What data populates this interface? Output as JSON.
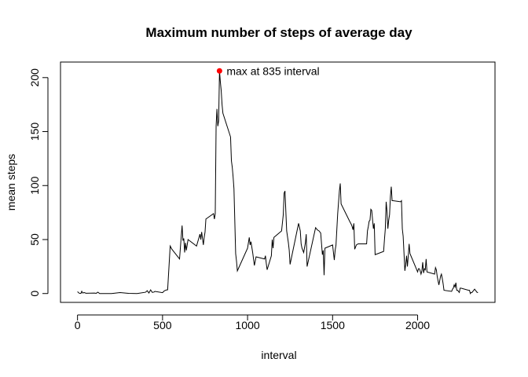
{
  "chart_data": {
    "type": "line",
    "title": "Maximum number of steps of average day",
    "xlabel": "interval",
    "ylabel": "mean steps",
    "xlim": [
      -100,
      2455
    ],
    "ylim": [
      -8.2,
      214.4
    ],
    "x_ticks": [
      0,
      500,
      1000,
      1500,
      2000
    ],
    "y_ticks": [
      0,
      50,
      100,
      150,
      200
    ],
    "x_tick_labels": [
      "0",
      "500",
      "1000",
      "1500",
      "2000"
    ],
    "y_tick_labels": [
      "0",
      "50",
      "100",
      "150",
      "200"
    ],
    "grid": false,
    "line_color": "#000000",
    "max_point": {
      "x": 835,
      "y": 206.2,
      "color": "#ff0000"
    },
    "annotation": "max at 835 interval",
    "series": [
      {
        "points": [
          [
            0,
            1.7
          ],
          [
            10,
            0.3
          ],
          [
            20,
            0.1
          ],
          [
            25,
            2.1
          ],
          [
            30,
            0.5
          ],
          [
            40,
            0.9
          ],
          [
            50,
            0.3
          ],
          [
            100,
            0.4
          ],
          [
            110,
            0.2
          ],
          [
            120,
            1.3
          ],
          [
            130,
            0.0
          ],
          [
            200,
            0.0
          ],
          [
            250,
            0.9
          ],
          [
            300,
            0.2
          ],
          [
            350,
            0.0
          ],
          [
            400,
            1.2
          ],
          [
            410,
            2.6
          ],
          [
            420,
            0.5
          ],
          [
            430,
            3.4
          ],
          [
            440,
            1.0
          ],
          [
            450,
            1.4
          ],
          [
            455,
            2.0
          ],
          [
            500,
            0.8
          ],
          [
            510,
            2.4
          ],
          [
            520,
            3.2
          ],
          [
            530,
            3.5
          ],
          [
            545,
            44
          ],
          [
            555,
            41
          ],
          [
            600,
            32
          ],
          [
            610,
            53
          ],
          [
            615,
            63
          ],
          [
            620,
            49
          ],
          [
            625,
            51
          ],
          [
            630,
            38
          ],
          [
            635,
            47
          ],
          [
            640,
            40
          ],
          [
            650,
            50
          ],
          [
            700,
            44
          ],
          [
            720,
            55
          ],
          [
            725,
            50
          ],
          [
            730,
            57
          ],
          [
            740,
            45
          ],
          [
            745,
            52
          ],
          [
            750,
            57
          ],
          [
            755,
            69
          ],
          [
            800,
            74
          ],
          [
            805,
            69
          ],
          [
            810,
            74
          ],
          [
            815,
            155
          ],
          [
            820,
            171
          ],
          [
            825,
            155
          ],
          [
            830,
            160
          ],
          [
            835,
            206.2
          ],
          [
            840,
            196
          ],
          [
            845,
            188
          ],
          [
            850,
            175
          ],
          [
            855,
            167
          ],
          [
            900,
            145
          ],
          [
            905,
            123
          ],
          [
            910,
            117
          ],
          [
            915,
            108
          ],
          [
            920,
            97
          ],
          [
            930,
            37
          ],
          [
            935,
            30
          ],
          [
            940,
            21
          ],
          [
            1000,
            42
          ],
          [
            1010,
            52
          ],
          [
            1015,
            45
          ],
          [
            1020,
            48
          ],
          [
            1030,
            38
          ],
          [
            1040,
            26
          ],
          [
            1050,
            34
          ],
          [
            1100,
            32
          ],
          [
            1105,
            35
          ],
          [
            1110,
            28
          ],
          [
            1115,
            22
          ],
          [
            1140,
            35
          ],
          [
            1145,
            50
          ],
          [
            1150,
            42
          ],
          [
            1155,
            52
          ],
          [
            1200,
            58
          ],
          [
            1210,
            73
          ],
          [
            1215,
            93
          ],
          [
            1220,
            95
          ],
          [
            1230,
            58
          ],
          [
            1240,
            47
          ],
          [
            1245,
            40
          ],
          [
            1250,
            27
          ],
          [
            1300,
            65
          ],
          [
            1310,
            58
          ],
          [
            1315,
            46
          ],
          [
            1320,
            42
          ],
          [
            1330,
            38
          ],
          [
            1340,
            47
          ],
          [
            1345,
            55
          ],
          [
            1350,
            25
          ],
          [
            1400,
            61
          ],
          [
            1410,
            59
          ],
          [
            1420,
            58
          ],
          [
            1430,
            56
          ],
          [
            1440,
            36
          ],
          [
            1445,
            40
          ],
          [
            1450,
            17
          ],
          [
            1455,
            42
          ],
          [
            1500,
            45
          ],
          [
            1505,
            38
          ],
          [
            1510,
            31
          ],
          [
            1515,
            40
          ],
          [
            1520,
            45
          ],
          [
            1530,
            74
          ],
          [
            1540,
            95
          ],
          [
            1545,
            102
          ],
          [
            1550,
            83
          ],
          [
            1600,
            67
          ],
          [
            1610,
            64
          ],
          [
            1615,
            62
          ],
          [
            1620,
            59
          ],
          [
            1625,
            65
          ],
          [
            1630,
            41
          ],
          [
            1640,
            45
          ],
          [
            1650,
            46
          ],
          [
            1700,
            46
          ],
          [
            1705,
            58
          ],
          [
            1710,
            62
          ],
          [
            1715,
            67
          ],
          [
            1720,
            68
          ],
          [
            1725,
            78
          ],
          [
            1730,
            77
          ],
          [
            1740,
            60
          ],
          [
            1745,
            65
          ],
          [
            1750,
            36
          ],
          [
            1800,
            39
          ],
          [
            1805,
            50
          ],
          [
            1810,
            60
          ],
          [
            1815,
            85
          ],
          [
            1820,
            76
          ],
          [
            1825,
            60
          ],
          [
            1830,
            68
          ],
          [
            1835,
            73
          ],
          [
            1840,
            90
          ],
          [
            1845,
            99
          ],
          [
            1850,
            86
          ],
          [
            1855,
            86
          ],
          [
            1900,
            85
          ],
          [
            1905,
            86
          ],
          [
            1910,
            60
          ],
          [
            1915,
            53
          ],
          [
            1920,
            37
          ],
          [
            1925,
            21
          ],
          [
            1930,
            27
          ],
          [
            1935,
            35
          ],
          [
            1940,
            25
          ],
          [
            1945,
            35
          ],
          [
            1950,
            46
          ],
          [
            1955,
            37
          ],
          [
            2000,
            20
          ],
          [
            2005,
            23
          ],
          [
            2010,
            23
          ],
          [
            2015,
            21
          ],
          [
            2020,
            18
          ],
          [
            2025,
            21
          ],
          [
            2030,
            29
          ],
          [
            2035,
            19
          ],
          [
            2040,
            23
          ],
          [
            2045,
            22
          ],
          [
            2050,
            32
          ],
          [
            2055,
            20
          ],
          [
            2100,
            18
          ],
          [
            2105,
            24
          ],
          [
            2110,
            22
          ],
          [
            2115,
            16
          ],
          [
            2120,
            12
          ],
          [
            2125,
            8
          ],
          [
            2130,
            12
          ],
          [
            2135,
            16
          ],
          [
            2140,
            18
          ],
          [
            2145,
            14
          ],
          [
            2150,
            9
          ],
          [
            2155,
            3
          ],
          [
            2200,
            2
          ],
          [
            2205,
            4
          ],
          [
            2210,
            5
          ],
          [
            2215,
            8
          ],
          [
            2220,
            6
          ],
          [
            2225,
            10
          ],
          [
            2230,
            3
          ],
          [
            2235,
            3
          ],
          [
            2240,
            2
          ],
          [
            2245,
            1
          ],
          [
            2250,
            5
          ],
          [
            2255,
            5
          ],
          [
            2300,
            3
          ],
          [
            2305,
            3
          ],
          [
            2310,
            0
          ],
          [
            2315,
            1
          ],
          [
            2320,
            1
          ],
          [
            2325,
            2
          ],
          [
            2330,
            3
          ],
          [
            2335,
            4
          ],
          [
            2340,
            3
          ],
          [
            2345,
            2
          ],
          [
            2350,
            1
          ],
          [
            2355,
            1
          ]
        ]
      }
    ]
  }
}
